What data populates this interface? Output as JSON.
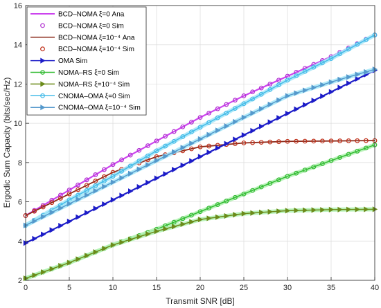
{
  "chart_data": {
    "type": "line",
    "xlabel": "Transmit SNR [dB]",
    "ylabel": "Ergodic Sum Capacity (bits/sec/Hz)",
    "xlim": [
      0,
      40
    ],
    "ylim": [
      2,
      16
    ],
    "xticks": [
      0,
      5,
      10,
      15,
      20,
      25,
      30,
      35,
      40
    ],
    "yticks": [
      2,
      4,
      6,
      8,
      10,
      12,
      14,
      16
    ],
    "grid": true,
    "legend_position": "top-left",
    "series": [
      {
        "name": "BCD–NOMA ξ=0 Ana",
        "color": "#cc44ee",
        "marker": "none",
        "line": true,
        "width": 2.2,
        "legend_lw": 2,
        "x": [
          0,
          5,
          10,
          15,
          20,
          25,
          30,
          35,
          40
        ],
        "y": [
          5.3,
          6.6,
          7.9,
          9.1,
          10.3,
          11.4,
          12.4,
          13.4,
          14.5
        ]
      },
      {
        "name": "BCD–NOMA ξ=0 Sim",
        "color": "#b030d0",
        "marker": "circle",
        "line": false,
        "x_step": 1,
        "x": [
          0,
          5,
          10,
          15,
          20,
          25,
          30,
          35,
          40
        ],
        "y": [
          5.3,
          6.6,
          7.9,
          9.1,
          10.3,
          11.4,
          12.4,
          13.4,
          14.5
        ]
      },
      {
        "name": "BCD–NOMA ξ=10⁻⁴ Ana",
        "color": "#8b2a1a",
        "marker": "none",
        "line": true,
        "width": 1.8,
        "legend_lw": 1.5,
        "x": [
          0,
          5,
          10,
          15,
          20,
          25,
          30,
          35,
          40
        ],
        "y": [
          5.3,
          6.4,
          7.5,
          8.3,
          8.8,
          9.0,
          9.08,
          9.1,
          9.12
        ]
      },
      {
        "name": "BCD–NOMA ξ=10⁻⁴ Sim",
        "color": "#c0301a",
        "marker": "circle",
        "line": false,
        "x_step": 1,
        "x": [
          0,
          5,
          10,
          15,
          20,
          25,
          30,
          35,
          40
        ],
        "y": [
          5.3,
          6.4,
          7.5,
          8.3,
          8.8,
          9.0,
          9.08,
          9.1,
          9.12
        ]
      },
      {
        "name": "OMA Sim",
        "color": "#1c1cc8",
        "marker": "triangle",
        "line": true,
        "width": 2.2,
        "legend_lw": 1.5,
        "x_step": 1,
        "x": [
          0,
          5,
          10,
          15,
          20,
          25,
          30,
          35,
          40
        ],
        "y": [
          3.9,
          5.0,
          6.1,
          7.2,
          8.3,
          9.4,
          10.5,
          11.6,
          12.7
        ]
      },
      {
        "name": "NOMA–RS ξ=0 Sim",
        "color": "#33bb33",
        "marker": "circle",
        "line": true,
        "width": 1.5,
        "legend_lw": 1.5,
        "x_step": 1,
        "glow": "#b2f2b2",
        "x": [
          0,
          5,
          10,
          15,
          20,
          25,
          30,
          35,
          40
        ],
        "y": [
          2.1,
          2.9,
          3.8,
          4.6,
          5.5,
          6.4,
          7.3,
          8.1,
          8.9
        ]
      },
      {
        "name": "NOMA–RS ξ=10⁻⁴ Sim",
        "color": "#6b8b1a",
        "marker": "triangle",
        "line": true,
        "width": 1.5,
        "legend_lw": 1.5,
        "x_step": 1,
        "glow": "#b2f2b2",
        "x": [
          0,
          5,
          10,
          15,
          20,
          25,
          30,
          35,
          40
        ],
        "y": [
          2.1,
          2.9,
          3.8,
          4.5,
          5.1,
          5.4,
          5.55,
          5.6,
          5.62
        ]
      },
      {
        "name": "CNOMA–OMA ξ=0 Sim",
        "color": "#44bbe8",
        "marker": "circle",
        "line": true,
        "width": 1.5,
        "legend_lw": 1.5,
        "x_step": 1,
        "glow": "#a8e8f8",
        "x": [
          0,
          5,
          10,
          15,
          20,
          25,
          30,
          35,
          40
        ],
        "y": [
          4.8,
          6.1,
          7.3,
          8.6,
          9.8,
          11.0,
          12.2,
          13.3,
          14.5
        ]
      },
      {
        "name": "CNOMA–OMA ξ=10⁻⁴ Sim",
        "color": "#5599cc",
        "marker": "triangle",
        "line": true,
        "width": 1.5,
        "legend_lw": 1.5,
        "x_step": 1,
        "glow": "#a8e8f8",
        "x": [
          0,
          5,
          10,
          15,
          20,
          25,
          30,
          35,
          40
        ],
        "y": [
          4.8,
          5.9,
          7.0,
          8.1,
          9.2,
          10.3,
          11.4,
          12.1,
          12.75
        ]
      }
    ]
  }
}
